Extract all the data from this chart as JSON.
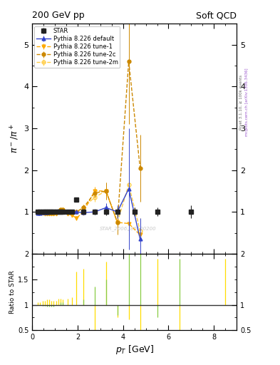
{
  "title_left": "200 GeV pp",
  "title_right": "Soft QCD",
  "ylabel_main": "$\\pi^- / \\pi^+$",
  "ylabel_ratio": "Ratio to STAR",
  "xlabel": "$p_T$ [GeV]",
  "right_label_top": "Rivet 3.1.10, ≥ 100k events",
  "right_label_bot": "mcplots.cern.ch [arXiv:1306.3436]",
  "watermark": "STAR_2006.J86500200",
  "star_x": [
    0.25,
    0.35,
    0.45,
    0.55,
    0.65,
    0.75,
    0.85,
    0.95,
    1.05,
    1.15,
    1.25,
    1.35,
    1.55,
    1.75,
    1.95,
    2.25,
    2.75,
    3.25,
    3.75,
    4.5,
    5.5,
    7.0
  ],
  "star_y": [
    1.0,
    1.0,
    1.0,
    1.0,
    1.0,
    1.0,
    1.0,
    1.0,
    1.0,
    1.0,
    1.0,
    1.0,
    1.0,
    1.0,
    1.3,
    1.0,
    1.0,
    1.0,
    1.0,
    1.0,
    1.0,
    1.0
  ],
  "star_yerr": [
    0.02,
    0.02,
    0.02,
    0.02,
    0.02,
    0.02,
    0.02,
    0.02,
    0.02,
    0.02,
    0.02,
    0.02,
    0.03,
    0.03,
    0.05,
    0.05,
    0.06,
    0.08,
    0.1,
    0.1,
    0.1,
    0.15
  ],
  "default_x": [
    0.25,
    0.35,
    0.45,
    0.55,
    0.65,
    0.75,
    0.85,
    0.95,
    1.05,
    1.15,
    1.25,
    1.35,
    1.55,
    1.75,
    1.95,
    2.25,
    2.75,
    3.25,
    3.75,
    4.25,
    4.75
  ],
  "default_y": [
    0.97,
    0.97,
    0.98,
    0.98,
    0.99,
    1.0,
    1.0,
    1.0,
    1.0,
    1.0,
    1.0,
    1.0,
    1.0,
    1.0,
    1.0,
    0.98,
    1.0,
    1.1,
    1.0,
    1.55,
    0.35
  ],
  "default_yerr": [
    0.01,
    0.01,
    0.01,
    0.01,
    0.01,
    0.01,
    0.01,
    0.01,
    0.01,
    0.01,
    0.01,
    0.01,
    0.02,
    0.02,
    0.03,
    0.05,
    0.07,
    0.1,
    0.15,
    1.45,
    0.5
  ],
  "tune1_x": [
    0.25,
    0.35,
    0.45,
    0.55,
    0.65,
    0.75,
    0.85,
    0.95,
    1.05,
    1.15,
    1.25,
    1.35,
    1.55,
    1.75,
    1.95,
    2.25,
    2.75,
    3.25,
    3.75,
    4.25,
    4.75
  ],
  "tune1_y": [
    1.0,
    1.0,
    0.97,
    0.96,
    0.96,
    0.95,
    0.95,
    0.95,
    0.95,
    1.0,
    1.0,
    1.0,
    0.95,
    0.92,
    0.85,
    1.0,
    1.5,
    1.5,
    0.75,
    0.72,
    0.45
  ],
  "tune1_yerr": [
    0.02,
    0.02,
    0.02,
    0.02,
    0.02,
    0.02,
    0.02,
    0.02,
    0.02,
    0.02,
    0.02,
    0.02,
    0.03,
    0.03,
    0.05,
    0.08,
    0.1,
    0.15,
    0.2,
    0.3,
    0.3
  ],
  "tune2c_x": [
    0.25,
    0.35,
    0.45,
    0.55,
    0.65,
    0.75,
    0.85,
    0.95,
    1.05,
    1.15,
    1.25,
    1.35,
    1.55,
    1.75,
    1.95,
    2.25,
    2.75,
    3.25,
    3.75,
    4.25,
    4.75
  ],
  "tune2c_y": [
    1.0,
    1.0,
    1.0,
    1.0,
    1.0,
    0.98,
    0.98,
    0.98,
    1.0,
    1.0,
    1.05,
    1.05,
    1.0,
    1.0,
    1.0,
    1.1,
    1.45,
    1.5,
    0.75,
    4.6,
    2.05
  ],
  "tune2c_yerr": [
    0.02,
    0.02,
    0.02,
    0.02,
    0.02,
    0.02,
    0.02,
    0.02,
    0.02,
    0.02,
    0.02,
    0.02,
    0.03,
    0.03,
    0.05,
    0.08,
    0.1,
    0.2,
    0.3,
    1.5,
    0.8
  ],
  "tune2m_x": [
    0.25,
    0.35,
    0.45,
    0.55,
    0.65,
    0.75,
    0.85,
    0.95,
    1.05,
    1.15,
    1.25,
    1.35,
    1.55,
    1.75,
    1.95,
    2.25,
    2.75,
    3.25,
    3.75,
    4.25,
    4.75
  ],
  "tune2m_y": [
    1.0,
    1.0,
    0.99,
    0.98,
    0.97,
    0.97,
    0.97,
    0.97,
    1.0,
    1.0,
    1.05,
    1.05,
    1.0,
    1.0,
    1.0,
    1.1,
    1.35,
    1.5,
    0.75,
    1.65,
    0.55
  ],
  "tune2m_yerr": [
    0.02,
    0.02,
    0.02,
    0.02,
    0.02,
    0.02,
    0.02,
    0.02,
    0.02,
    0.02,
    0.02,
    0.02,
    0.03,
    0.03,
    0.05,
    0.08,
    0.1,
    0.2,
    0.25,
    0.4,
    0.3
  ],
  "ratio_yellow_x": [
    0.25,
    0.35,
    0.45,
    0.55,
    0.65,
    0.75,
    0.85,
    0.95,
    1.05,
    1.15,
    1.25,
    1.35,
    1.55,
    1.75,
    1.95,
    2.25,
    2.75,
    3.25,
    3.75,
    4.25,
    4.75,
    5.5,
    6.5,
    7.0,
    8.5
  ],
  "ratio_yellow_y": [
    1.05,
    1.05,
    1.08,
    1.08,
    1.1,
    1.1,
    1.08,
    1.08,
    1.08,
    1.12,
    1.12,
    1.1,
    1.12,
    1.15,
    1.65,
    1.7,
    0.5,
    1.85,
    0.75,
    0.72,
    0.5,
    1.9,
    0.5,
    1.0,
    1.9
  ],
  "ratio_green_x": [
    0.25,
    0.35,
    0.45,
    0.55,
    0.65,
    0.75,
    0.85,
    0.95,
    1.05,
    1.15,
    1.25,
    1.35,
    1.55,
    1.75,
    1.95,
    2.25,
    2.75,
    3.25,
    3.75,
    4.25,
    4.75,
    5.5,
    6.5,
    7.0,
    8.5
  ],
  "ratio_green_y": [
    1.0,
    1.0,
    0.98,
    0.98,
    0.97,
    0.97,
    0.97,
    0.97,
    1.0,
    1.0,
    1.05,
    1.05,
    1.0,
    1.0,
    1.0,
    1.1,
    1.35,
    1.5,
    0.8,
    4.5,
    2.0,
    0.75,
    1.9,
    1.0,
    1.0
  ],
  "xlim": [
    0,
    9.0
  ],
  "ylim_main": [
    0,
    5.5
  ],
  "ylim_ratio": [
    0.5,
    2.0
  ],
  "yticks_main": [
    0,
    1,
    2,
    3,
    4,
    5
  ],
  "yticks_ratio": [
    0.5,
    1.0,
    1.5,
    2.0
  ],
  "color_star": "#222222",
  "color_default": "#3344cc",
  "color_tune1": "#ffaa00",
  "color_tune2c": "#cc8800",
  "color_tune2m": "#ffcc44",
  "color_ratio_yellow": "#ffdd00",
  "color_ratio_green": "#88cc44",
  "bg_color": "#ffffff"
}
